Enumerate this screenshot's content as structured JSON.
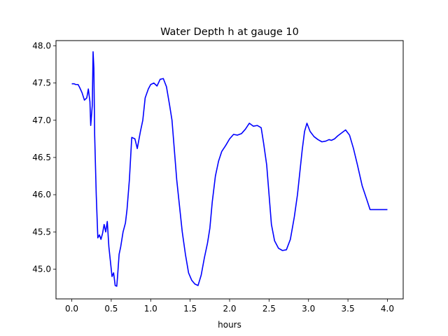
{
  "chart_data": {
    "type": "line",
    "title": "Water Depth h at gauge 10",
    "xlabel": "hours",
    "ylabel": "",
    "xlim": [
      -0.2,
      4.2
    ],
    "ylim": [
      44.6,
      48.07
    ],
    "grid": false,
    "x_ticks": [
      0.0,
      0.5,
      1.0,
      1.5,
      2.0,
      2.5,
      3.0,
      3.5,
      4.0
    ],
    "x_tick_labels": [
      "0.0",
      "0.5",
      "1.0",
      "1.5",
      "2.0",
      "2.5",
      "3.0",
      "3.5",
      "4.0"
    ],
    "y_ticks": [
      45.0,
      45.5,
      46.0,
      46.5,
      47.0,
      47.5,
      48.0
    ],
    "y_tick_labels": [
      "45.0",
      "45.5",
      "46.0",
      "46.5",
      "47.0",
      "47.5",
      "48.0"
    ],
    "series": [
      {
        "color": "#0000ff",
        "x": [
          0.0,
          0.03,
          0.05,
          0.08,
          0.1,
          0.13,
          0.16,
          0.19,
          0.21,
          0.23,
          0.24,
          0.26,
          0.27,
          0.28,
          0.29,
          0.3,
          0.31,
          0.33,
          0.35,
          0.37,
          0.39,
          0.41,
          0.43,
          0.45,
          0.47,
          0.49,
          0.51,
          0.53,
          0.55,
          0.57,
          0.58,
          0.6,
          0.62,
          0.65,
          0.68,
          0.7,
          0.73,
          0.76,
          0.8,
          0.83,
          0.87,
          0.9,
          0.93,
          0.97,
          1.0,
          1.04,
          1.08,
          1.12,
          1.16,
          1.2,
          1.24,
          1.27,
          1.3,
          1.33,
          1.36,
          1.4,
          1.44,
          1.48,
          1.52,
          1.56,
          1.6,
          1.64,
          1.68,
          1.72,
          1.75,
          1.78,
          1.82,
          1.86,
          1.9,
          1.95,
          2.0,
          2.05,
          2.1,
          2.15,
          2.2,
          2.25,
          2.3,
          2.35,
          2.4,
          2.43,
          2.47,
          2.5,
          2.53,
          2.57,
          2.62,
          2.67,
          2.72,
          2.77,
          2.82,
          2.86,
          2.89,
          2.92,
          2.95,
          2.98,
          3.02,
          3.07,
          3.12,
          3.17,
          3.22,
          3.26,
          3.29,
          3.33,
          3.37,
          3.42,
          3.47,
          3.52,
          3.57,
          3.62,
          3.68,
          3.74,
          3.78,
          3.83,
          3.88,
          3.93,
          3.96,
          4.0
        ],
        "y": [
          47.49,
          47.49,
          47.48,
          47.48,
          47.44,
          47.37,
          47.27,
          47.3,
          47.42,
          47.25,
          46.93,
          47.2,
          47.92,
          47.7,
          46.8,
          46.4,
          46.0,
          45.42,
          45.46,
          45.4,
          45.48,
          45.6,
          45.5,
          45.64,
          45.3,
          45.1,
          44.9,
          44.95,
          44.78,
          44.77,
          44.9,
          45.2,
          45.3,
          45.5,
          45.62,
          45.8,
          46.2,
          46.77,
          46.75,
          46.62,
          46.85,
          47.0,
          47.3,
          47.42,
          47.48,
          47.5,
          47.46,
          47.55,
          47.56,
          47.45,
          47.2,
          47.0,
          46.6,
          46.2,
          45.9,
          45.5,
          45.2,
          44.95,
          44.85,
          44.8,
          44.78,
          44.92,
          45.15,
          45.35,
          45.55,
          45.9,
          46.25,
          46.45,
          46.58,
          46.66,
          46.75,
          46.81,
          46.8,
          46.82,
          46.88,
          46.96,
          46.92,
          46.93,
          46.9,
          46.7,
          46.4,
          46.0,
          45.6,
          45.38,
          45.28,
          45.25,
          45.26,
          45.4,
          45.7,
          46.0,
          46.3,
          46.6,
          46.85,
          46.96,
          46.85,
          46.78,
          46.74,
          46.71,
          46.72,
          46.74,
          46.73,
          46.75,
          46.79,
          46.83,
          46.87,
          46.8,
          46.62,
          46.4,
          46.12,
          45.93,
          45.8,
          45.8,
          45.8,
          45.8,
          45.8,
          45.8
        ]
      }
    ]
  }
}
